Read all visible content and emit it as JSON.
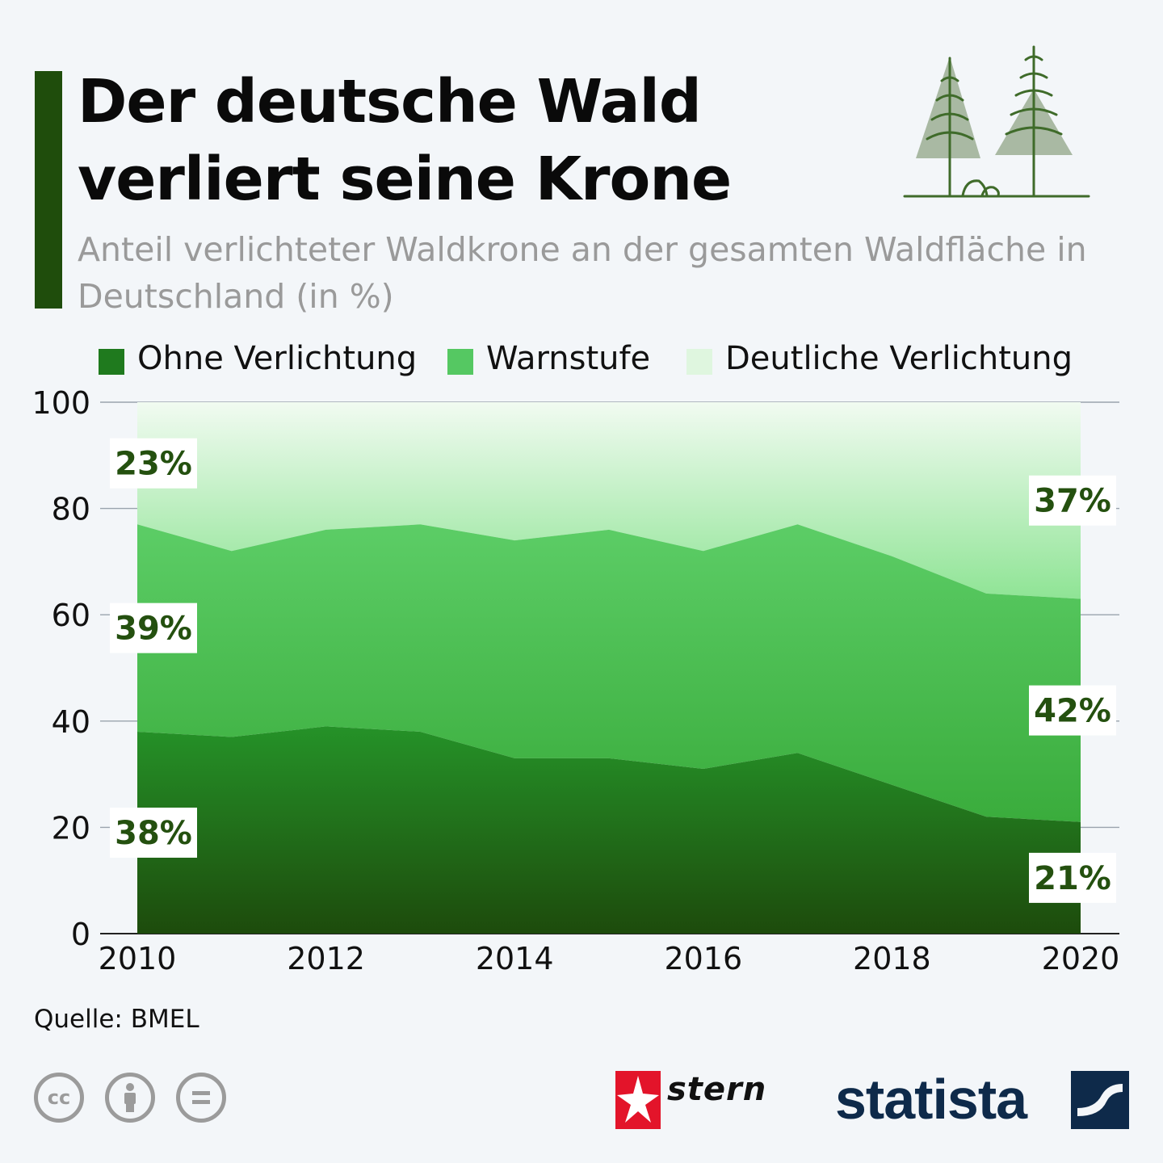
{
  "title": "Der deutsche Wald verliert seine Krone",
  "subtitle": "Anteil verlichteter Waldkrone an der gesamten Waldfläche in Deutschland (in %)",
  "source": "Quelle: BMEL",
  "logos": {
    "stern": "stern",
    "statista": "statista",
    "cc_icons": [
      "cc",
      "by",
      "nd"
    ]
  },
  "colors": {
    "accent": "#1f4d0c",
    "ohne": "#1f8a22",
    "warn": "#55c862",
    "deutlich": "#b9edbb",
    "label_text": "#24500f"
  },
  "chart_data": {
    "type": "area",
    "stacked": true,
    "x": [
      2010,
      2011,
      2012,
      2013,
      2014,
      2015,
      2016,
      2017,
      2018,
      2019,
      2020
    ],
    "x_tick_labels": [
      "2010",
      "2012",
      "2014",
      "2016",
      "2018",
      "2020"
    ],
    "y_tick_labels": [
      "0",
      "20",
      "40",
      "60",
      "80",
      "100"
    ],
    "ylim": [
      0,
      100
    ],
    "grid": "horizontal",
    "legend_position": "top",
    "series": [
      {
        "name": "Ohne Verlichtung",
        "values": [
          38,
          37,
          39,
          38,
          33,
          33,
          31,
          34,
          28,
          22,
          21
        ]
      },
      {
        "name": "Warnstufe",
        "values": [
          39,
          35,
          37,
          39,
          41,
          43,
          41,
          43,
          43,
          42,
          42
        ]
      },
      {
        "name": "Deutliche Verlichtung",
        "values": [
          23,
          28,
          24,
          23,
          26,
          24,
          28,
          23,
          29,
          36,
          37
        ]
      }
    ],
    "labels": {
      "start": [
        "38%",
        "39%",
        "23%"
      ],
      "end": [
        "21%",
        "42%",
        "37%"
      ]
    }
  }
}
